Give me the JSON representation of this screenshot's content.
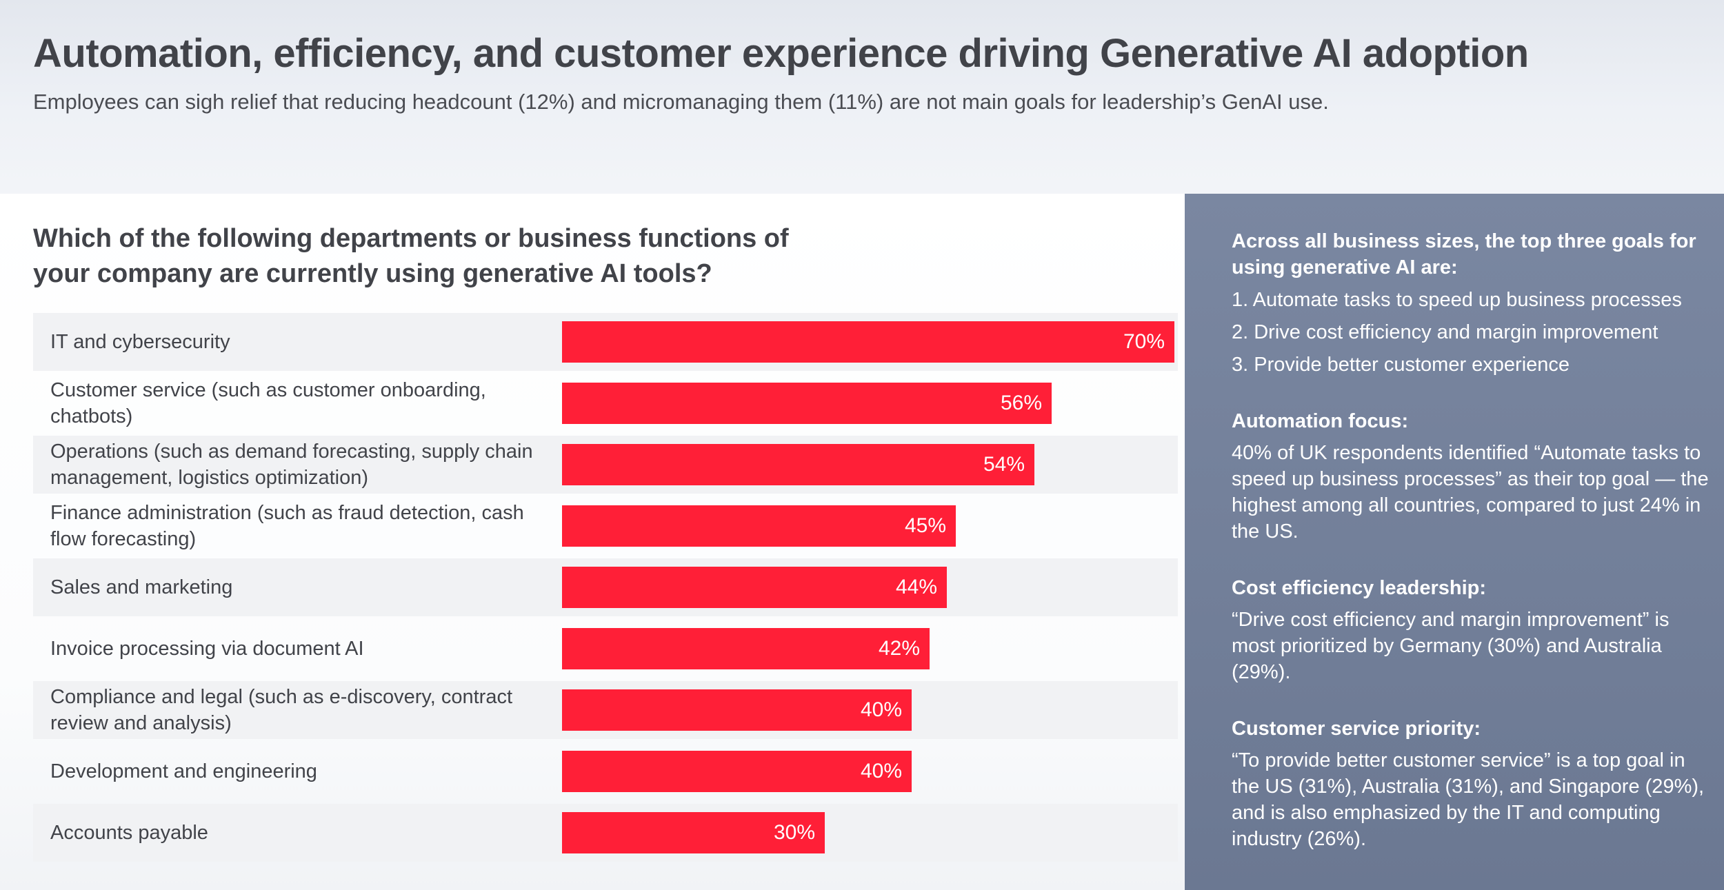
{
  "header": {
    "title": "Automation, efficiency, and customer experience driving Generative AI adoption",
    "subtitle": "Employees can sigh relief that reducing headcount (12%) and micromanaging them (11%) are not main goals for leadership’s GenAI use."
  },
  "chart_data": {
    "type": "bar",
    "orientation": "horizontal",
    "title": "Which of the following departments or business functions of your company are currently using generative AI tools?",
    "categories": [
      "IT and cybersecurity",
      "Customer service (such as customer onboarding, chatbots)",
      "Operations (such as demand forecasting, supply chain management, logistics optimization)",
      "Finance administration (such as fraud detection, cash flow forecasting)",
      "Sales and marketing",
      "Invoice processing via document AI",
      "Compliance and legal (such as e-discovery, contract review and analysis)",
      "Development and engineering",
      "Accounts payable"
    ],
    "values": [
      70,
      56,
      54,
      45,
      44,
      42,
      40,
      40,
      30
    ],
    "value_labels": [
      "70%",
      "56%",
      "54%",
      "45%",
      "44%",
      "42%",
      "40%",
      "40%",
      "30%"
    ],
    "xlim": [
      0,
      70
    ],
    "bar_color": "#ff1f37",
    "xlabel": "",
    "ylabel": ""
  },
  "side": {
    "heading": "Across all business sizes, the top three goals for using generative AI are:",
    "goals": [
      "1. Automate tasks to speed up business processes",
      "2. Drive cost efficiency and margin improvement",
      "3. Provide better customer experience"
    ],
    "sections": [
      {
        "head": "Automation focus:",
        "body": "40% of UK respondents identified “Automate tasks to speed up business processes” as their top goal — the highest among all countries, compared to just 24% in the US."
      },
      {
        "head": "Cost efficiency leadership:",
        "body": "“Drive cost efficiency and margin improvement” is most prioritized by Germany (30%) and Australia (29%)."
      },
      {
        "head": "Customer service priority:",
        "body": "“To provide better customer service” is a top goal in the US (31%), Australia (31%), and Singapore (29%), and is also emphasized by the IT and computing industry (26%)."
      }
    ]
  },
  "colors": {
    "accent": "#ff1f37",
    "side_panel": "#76839d",
    "text": "#414349"
  }
}
